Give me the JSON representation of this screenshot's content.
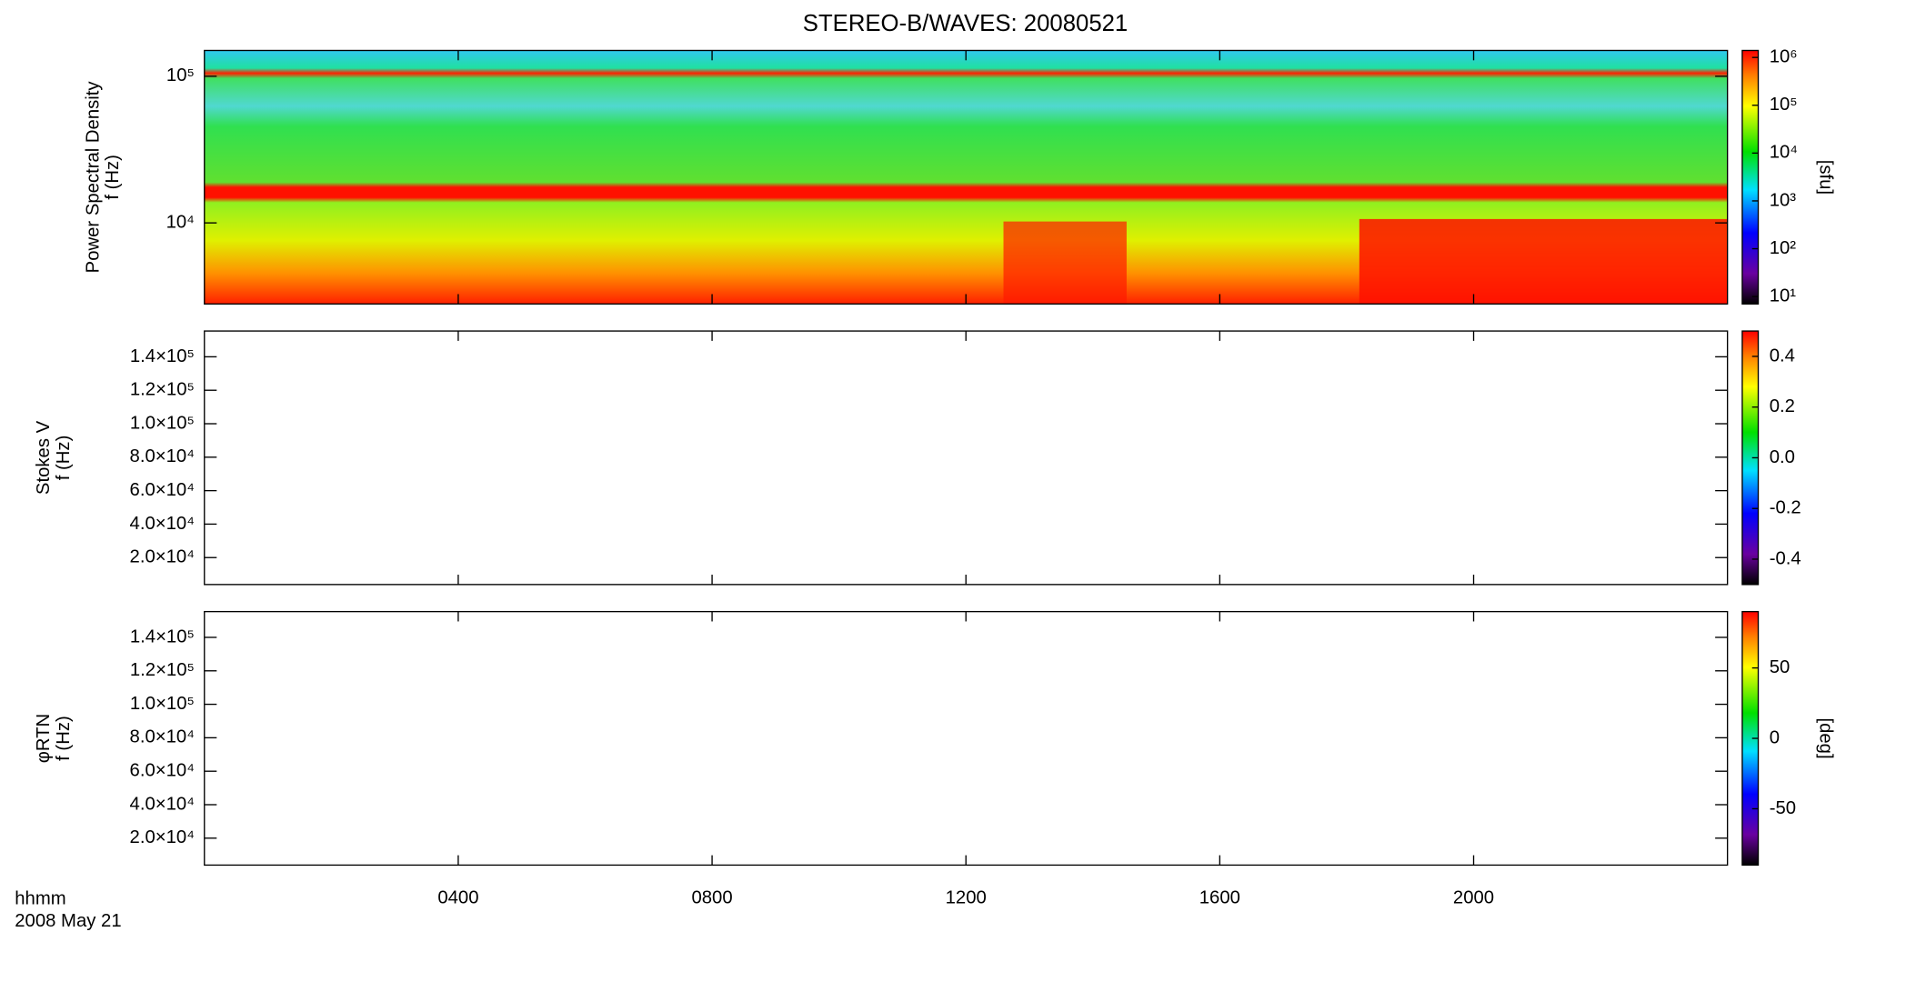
{
  "chart_data": {
    "type": "spectrogram",
    "title": "STEREO-B/WAVES: 20080521",
    "xlim": [
      0,
      24
    ],
    "xticks": [
      {
        "value": 4,
        "label": "0400"
      },
      {
        "value": 8,
        "label": "0800"
      },
      {
        "value": 12,
        "label": "1200"
      },
      {
        "value": 16,
        "label": "1600"
      },
      {
        "value": 20,
        "label": "2000"
      }
    ],
    "xlabel": [
      "hhmm",
      "2008 May 21"
    ],
    "panels": [
      {
        "ylabel": [
          "Power Spectral Density",
          "f (Hz)"
        ],
        "yscale": "log",
        "ylim": [
          2800,
          150000
        ],
        "yticks": [
          {
            "value": 10000,
            "label": "10⁴"
          },
          {
            "value": 100000,
            "label": "10⁵"
          }
        ],
        "cscale": "log",
        "clim": [
          7,
          1400000
        ],
        "cticks": [
          {
            "value": 10,
            "label": "10¹"
          },
          {
            "value": 100,
            "label": "10²"
          },
          {
            "value": 1000,
            "label": "10³"
          },
          {
            "value": 10000,
            "label": "10⁴"
          },
          {
            "value": 100000,
            "label": "10⁵"
          },
          {
            "value": 1000000,
            "label": "10⁶"
          }
        ],
        "clabel": "[sfu]"
      },
      {
        "ylabel": [
          "Stokes V",
          "f (Hz)"
        ],
        "yscale": "linear",
        "ylim": [
          3900,
          155400
        ],
        "yticks": [
          {
            "value": 20000,
            "label": "2.0×10⁴"
          },
          {
            "value": 40000,
            "label": "4.0×10⁴"
          },
          {
            "value": 60000,
            "label": "6.0×10⁴"
          },
          {
            "value": 80000,
            "label": "8.0×10⁴"
          },
          {
            "value": 100000,
            "label": "1.0×10⁵"
          },
          {
            "value": 120000,
            "label": "1.2×10⁵"
          },
          {
            "value": 140000,
            "label": "1.4×10⁵"
          }
        ],
        "cscale": "linear",
        "clim": [
          -0.5,
          0.5
        ],
        "cticks": [
          -0.4,
          -0.2,
          {
            "value": 0,
            "label": "0.0"
          },
          0.2,
          0.4
        ]
      },
      {
        "ylabel": [
          "φRTN",
          "f (Hz)"
        ],
        "yscale": "linear",
        "ylim": [
          3900,
          155400
        ],
        "yticks": [
          {
            "value": 20000,
            "label": "2.0×10⁴"
          },
          {
            "value": 40000,
            "label": "4.0×10⁴"
          },
          {
            "value": 60000,
            "label": "6.0×10⁴"
          },
          {
            "value": 80000,
            "label": "8.0×10⁴"
          },
          {
            "value": 100000,
            "label": "1.0×10⁵"
          },
          {
            "value": 120000,
            "label": "1.2×10⁵"
          },
          {
            "value": 140000,
            "label": "1.4×10⁵"
          }
        ],
        "cscale": "linear",
        "clim": [
          -90,
          90
        ],
        "cticks": [
          -50,
          0,
          50
        ],
        "clabel": "[deg]"
      }
    ]
  }
}
